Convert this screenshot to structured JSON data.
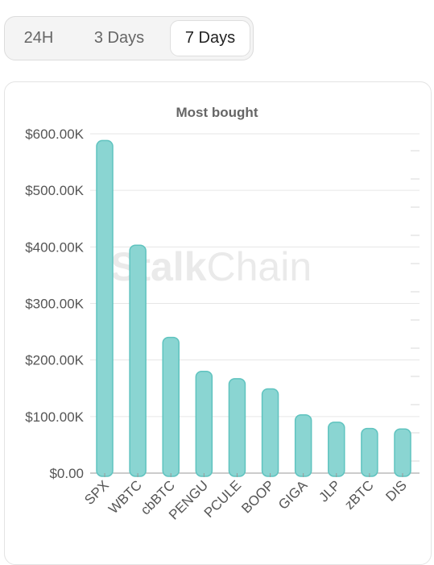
{
  "tabs": [
    {
      "label": "24H",
      "active": false
    },
    {
      "label": "3 Days",
      "active": false
    },
    {
      "label": "7 Days",
      "active": true
    }
  ],
  "watermark": {
    "part1": "Stalk",
    "part2": "Chain"
  },
  "chart_data": {
    "type": "bar",
    "title": "Most bought",
    "categories": [
      "SPX",
      "WBTC",
      "cbBTC",
      "PENGU",
      "PCULE",
      "BOOP",
      "GIGA",
      "JLP",
      "zBTC",
      "DIS"
    ],
    "values": [
      588000,
      403000,
      240000,
      180000,
      167000,
      149000,
      103000,
      90000,
      79000,
      78000
    ],
    "yticks": [
      0,
      100000,
      200000,
      300000,
      400000,
      500000,
      600000
    ],
    "ytick_labels": [
      "$0.00",
      "$100.00K",
      "$200.00K",
      "$300.00K",
      "$400.00K",
      "$500.00K",
      "$600.00K"
    ],
    "ylim": [
      0,
      600000
    ],
    "grid": true,
    "colors": {
      "bar_fill": "#8ad5d2",
      "bar_stroke": "#5fc3bf",
      "grid": "#e6e6e6",
      "axis": "#999999"
    }
  }
}
